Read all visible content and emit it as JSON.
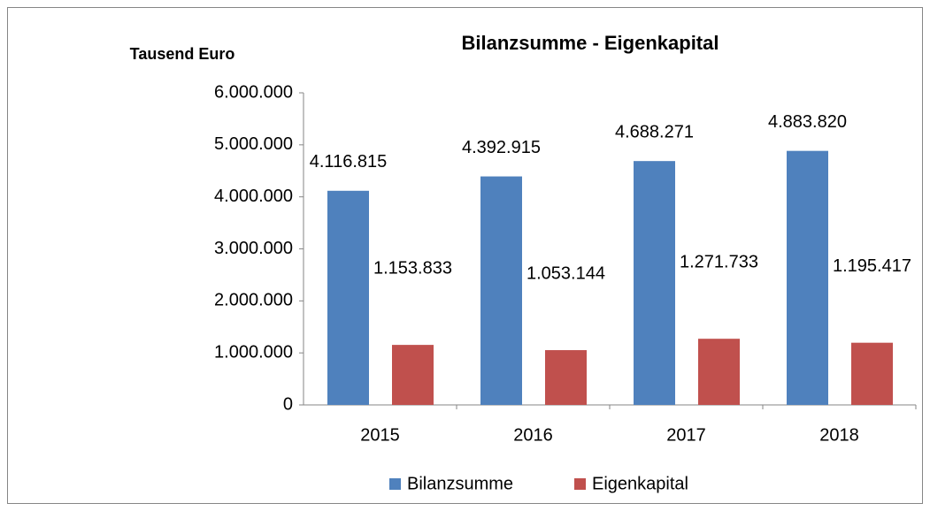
{
  "chart_data": {
    "type": "bar",
    "title": "Bilanzsumme - Eigenkapital",
    "y_axis_label": "Tausend Euro",
    "categories": [
      "2015",
      "2016",
      "2017",
      "2018"
    ],
    "series": [
      {
        "name": "Bilanzsumme",
        "color": "#4f81bd",
        "values": [
          4116815,
          4392915,
          4688271,
          4883820
        ],
        "value_labels": [
          "4.116.815",
          "4.392.915",
          "4.688.271",
          "4.883.820"
        ]
      },
      {
        "name": "Eigenkapital",
        "color": "#c0504d",
        "values": [
          1153833,
          1053144,
          1271733,
          1195417
        ],
        "value_labels": [
          "1.153.833",
          "1.053.144",
          "1.271.733",
          "1.195.417"
        ]
      }
    ],
    "ylim": [
      0,
      6000000
    ],
    "yticks": [
      0,
      {
        "value": 1000000,
        "label": "1.000.000"
      },
      {
        "value": 2000000,
        "label": "2.000.000"
      },
      {
        "value": 3000000,
        "label": "3.000.000"
      },
      {
        "value": 4000000,
        "label": "4.000.000"
      },
      {
        "value": 5000000,
        "label": "5.000.000"
      },
      {
        "value": 6000000,
        "label": "6.000.000"
      }
    ],
    "grid": false,
    "legend": "bottom"
  }
}
